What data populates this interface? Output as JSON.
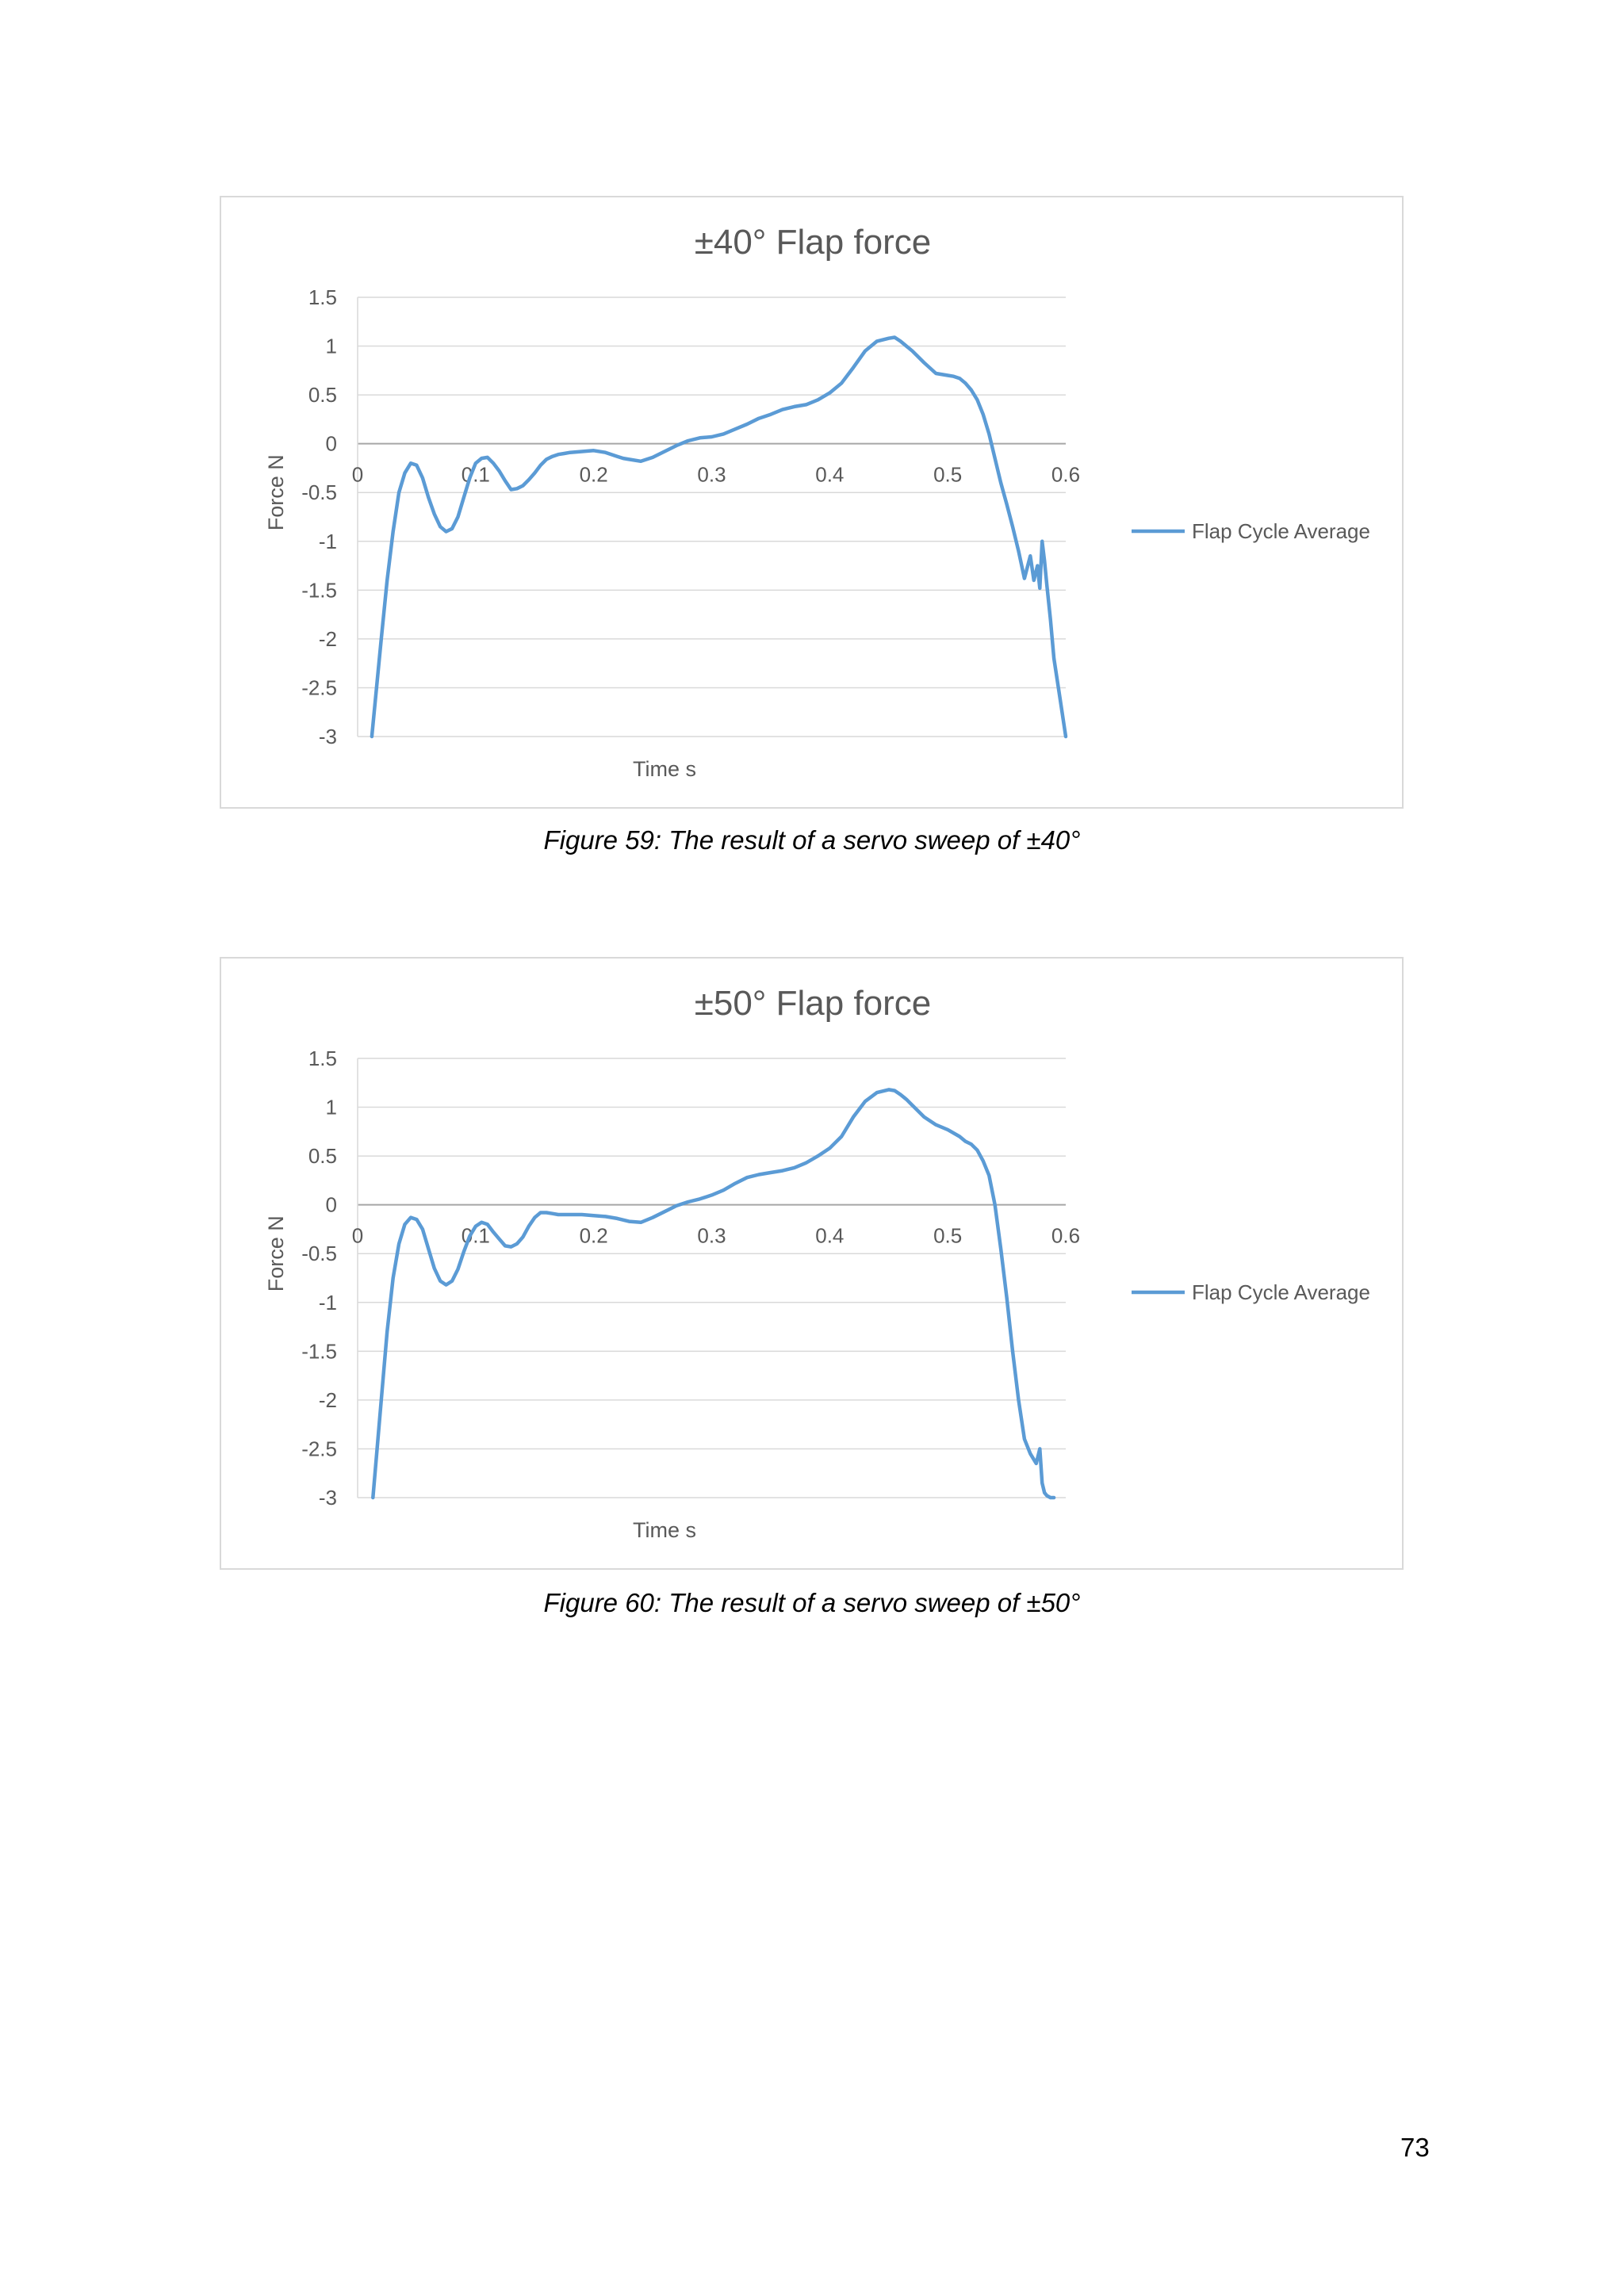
{
  "page_number": "73",
  "chart_data": [
    {
      "type": "line",
      "title": "±40° Flap force",
      "xlabel": "Time s",
      "ylabel": "Force N",
      "xlim": [
        0,
        0.6
      ],
      "ylim": [
        -3,
        1.5
      ],
      "x_ticks": [
        "0",
        "0.1",
        "0.2",
        "0.3",
        "0.4",
        "0.5",
        "0.6"
      ],
      "y_ticks": [
        "1.5",
        "1",
        "0.5",
        "0",
        "-0.5",
        "-1",
        "-1.5",
        "-2",
        "-2.5",
        "-3"
      ],
      "grid": true,
      "legend_position": "right",
      "color": "#5b9bd5",
      "series": [
        {
          "name": "Flap Cycle Average",
          "x": [
            0.012,
            0.02,
            0.025,
            0.03,
            0.035,
            0.04,
            0.045,
            0.05,
            0.055,
            0.06,
            0.065,
            0.07,
            0.075,
            0.08,
            0.085,
            0.09,
            0.095,
            0.1,
            0.105,
            0.11,
            0.115,
            0.12,
            0.125,
            0.13,
            0.135,
            0.14,
            0.145,
            0.15,
            0.155,
            0.16,
            0.165,
            0.17,
            0.175,
            0.18,
            0.19,
            0.2,
            0.21,
            0.22,
            0.225,
            0.23,
            0.24,
            0.25,
            0.26,
            0.27,
            0.28,
            0.29,
            0.3,
            0.31,
            0.32,
            0.33,
            0.34,
            0.35,
            0.36,
            0.37,
            0.38,
            0.39,
            0.4,
            0.41,
            0.42,
            0.43,
            0.44,
            0.45,
            0.455,
            0.46,
            0.465,
            0.47,
            0.48,
            0.49,
            0.5,
            0.505,
            0.51,
            0.515,
            0.52,
            0.525,
            0.53,
            0.535,
            0.54,
            0.545,
            0.55,
            0.555,
            0.56,
            0.565,
            0.57,
            0.573,
            0.576,
            0.578,
            0.58,
            0.582,
            0.584,
            0.587,
            0.59,
            0.595,
            0.6
          ],
          "y": [
            -3.0,
            -2.0,
            -1.4,
            -0.9,
            -0.5,
            -0.3,
            -0.2,
            -0.22,
            -0.35,
            -0.55,
            -0.72,
            -0.85,
            -0.9,
            -0.87,
            -0.75,
            -0.55,
            -0.35,
            -0.2,
            -0.15,
            -0.14,
            -0.2,
            -0.28,
            -0.38,
            -0.47,
            -0.46,
            -0.43,
            -0.37,
            -0.3,
            -0.22,
            -0.16,
            -0.13,
            -0.11,
            -0.1,
            -0.09,
            -0.08,
            -0.07,
            -0.09,
            -0.13,
            -0.15,
            -0.16,
            -0.18,
            -0.14,
            -0.08,
            -0.02,
            0.03,
            0.06,
            0.07,
            0.1,
            0.15,
            0.2,
            0.26,
            0.3,
            0.35,
            0.38,
            0.4,
            0.45,
            0.52,
            0.62,
            0.78,
            0.95,
            1.05,
            1.08,
            1.09,
            1.05,
            1.0,
            0.95,
            0.83,
            0.72,
            0.7,
            0.69,
            0.67,
            0.62,
            0.55,
            0.45,
            0.3,
            0.1,
            -0.15,
            -0.4,
            -0.62,
            -0.85,
            -1.1,
            -1.38,
            -1.15,
            -1.4,
            -1.25,
            -1.48,
            -1.0,
            -1.2,
            -1.45,
            -1.8,
            -2.2,
            -2.6,
            -3.0
          ]
        }
      ]
    },
    {
      "type": "line",
      "title": "±50° Flap force",
      "xlabel": "Time s",
      "ylabel": "Force N",
      "xlim": [
        0,
        0.6
      ],
      "ylim": [
        -3,
        1.5
      ],
      "x_ticks": [
        "0",
        "0.1",
        "0.2",
        "0.3",
        "0.4",
        "0.5",
        "0.6"
      ],
      "y_ticks": [
        "1.5",
        "1",
        "0.5",
        "0",
        "-0.5",
        "-1",
        "-1.5",
        "-2",
        "-2.5",
        "-3"
      ],
      "grid": true,
      "legend_position": "right",
      "color": "#5b9bd5",
      "series": [
        {
          "name": "Flap Cycle Average",
          "x": [
            0.013,
            0.02,
            0.025,
            0.03,
            0.035,
            0.04,
            0.045,
            0.05,
            0.055,
            0.06,
            0.065,
            0.07,
            0.075,
            0.08,
            0.085,
            0.09,
            0.095,
            0.1,
            0.105,
            0.11,
            0.115,
            0.12,
            0.125,
            0.13,
            0.135,
            0.14,
            0.145,
            0.15,
            0.155,
            0.16,
            0.165,
            0.17,
            0.175,
            0.18,
            0.19,
            0.2,
            0.21,
            0.22,
            0.23,
            0.24,
            0.25,
            0.26,
            0.27,
            0.28,
            0.29,
            0.3,
            0.31,
            0.32,
            0.33,
            0.34,
            0.35,
            0.36,
            0.37,
            0.38,
            0.39,
            0.4,
            0.41,
            0.42,
            0.43,
            0.44,
            0.45,
            0.455,
            0.46,
            0.465,
            0.47,
            0.48,
            0.49,
            0.5,
            0.51,
            0.515,
            0.52,
            0.525,
            0.53,
            0.535,
            0.54,
            0.545,
            0.55,
            0.555,
            0.56,
            0.565,
            0.57,
            0.575,
            0.578,
            0.58,
            0.582,
            0.584,
            0.587,
            0.59
          ],
          "y": [
            -3.0,
            -2.0,
            -1.3,
            -0.75,
            -0.4,
            -0.2,
            -0.13,
            -0.15,
            -0.25,
            -0.45,
            -0.65,
            -0.78,
            -0.82,
            -0.78,
            -0.66,
            -0.48,
            -0.32,
            -0.22,
            -0.18,
            -0.2,
            -0.28,
            -0.35,
            -0.42,
            -0.43,
            -0.4,
            -0.33,
            -0.22,
            -0.13,
            -0.08,
            -0.08,
            -0.09,
            -0.1,
            -0.1,
            -0.1,
            -0.1,
            -0.11,
            -0.12,
            -0.14,
            -0.17,
            -0.18,
            -0.13,
            -0.07,
            -0.01,
            0.03,
            0.06,
            0.1,
            0.15,
            0.22,
            0.28,
            0.31,
            0.33,
            0.35,
            0.38,
            0.43,
            0.5,
            0.58,
            0.7,
            0.9,
            1.06,
            1.15,
            1.18,
            1.17,
            1.13,
            1.08,
            1.02,
            0.9,
            0.82,
            0.77,
            0.7,
            0.65,
            0.62,
            0.56,
            0.45,
            0.3,
            0.0,
            -0.45,
            -0.95,
            -1.5,
            -2.0,
            -2.4,
            -2.55,
            -2.65,
            -2.5,
            -2.85,
            -2.95,
            -2.98,
            -3.0,
            -3.0
          ]
        }
      ]
    }
  ],
  "captions": [
    "Figure 59: The result of a servo sweep of ±40°",
    "Figure 60: The result of a servo sweep of ±50°"
  ]
}
